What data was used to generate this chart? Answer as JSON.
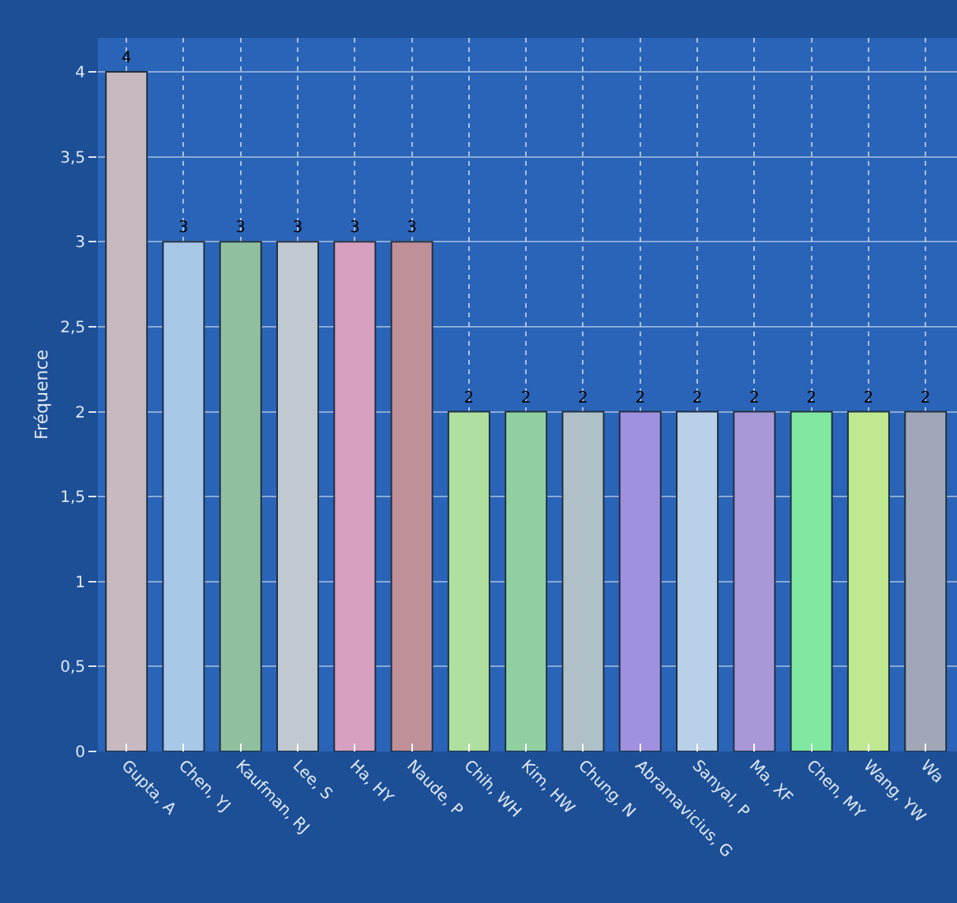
{
  "chart_data": {
    "type": "bar",
    "ylabel": "Fréquence",
    "categories": [
      "Gupta, A",
      "Chen, YJ",
      "Kaufman, RJ",
      "Lee, S",
      "Ha, HY",
      "Naude, P",
      "Chih, WH",
      "Kim, HW",
      "Chung, N",
      "Abramavicius, G",
      "Sanyal, P",
      "Ma, XF",
      "Chen, MY",
      "Wang, YW",
      "Wa"
    ],
    "values": [
      4,
      3,
      3,
      3,
      3,
      3,
      2,
      2,
      2,
      2,
      2,
      2,
      2,
      2,
      2
    ],
    "colors": [
      "#c8b8c0",
      "#a8c8e8",
      "#90c0a0",
      "#c0c8d0",
      "#d8a0c0",
      "#c09098",
      "#b0e0a0",
      "#90d0a0",
      "#b0c0c8",
      "#a090e0",
      "#b8d0e8",
      "#a898d8",
      "#80e8a0",
      "#c0e890",
      "#a0a8b8"
    ],
    "ylim": [
      0,
      4.2
    ],
    "yticks": [
      0,
      {
        "value": 0.5,
        "label": "0,5"
      },
      1,
      {
        "value": 1.5,
        "label": "1,5"
      },
      2,
      {
        "value": 2.5,
        "label": "2,5"
      },
      3,
      {
        "value": 3.5,
        "label": "3,5"
      },
      4
    ],
    "data_labels": true,
    "grid": true
  }
}
